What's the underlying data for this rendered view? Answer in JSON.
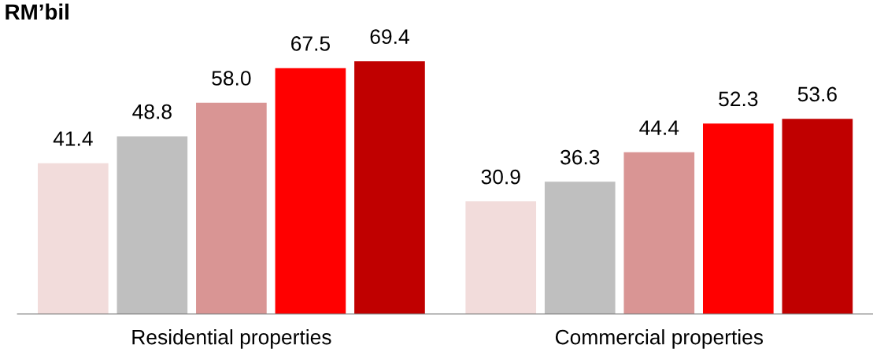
{
  "chart_data": {
    "type": "bar",
    "title": "RM’bil",
    "categories": [
      "Residential properties",
      "Commercial properties"
    ],
    "series": [
      {
        "color": "#f2dcdb",
        "values": [
          41.4,
          30.9
        ],
        "value_labels": [
          "41.4",
          "30.9"
        ]
      },
      {
        "color": "#bfbfbf",
        "values": [
          48.8,
          36.3
        ],
        "value_labels": [
          "48.8",
          "36.3"
        ]
      },
      {
        "color": "#d99594",
        "values": [
          58.0,
          44.4
        ],
        "value_labels": [
          "58.0",
          "44.4"
        ]
      },
      {
        "color": "#ff0000",
        "values": [
          67.5,
          52.3
        ],
        "value_labels": [
          "67.5",
          "52.3"
        ]
      },
      {
        "color": "#c00000",
        "values": [
          69.4,
          53.6
        ],
        "value_labels": [
          "69.4",
          "53.6"
        ]
      }
    ],
    "tick_labels": "x",
    "grid": false,
    "legend": false
  }
}
